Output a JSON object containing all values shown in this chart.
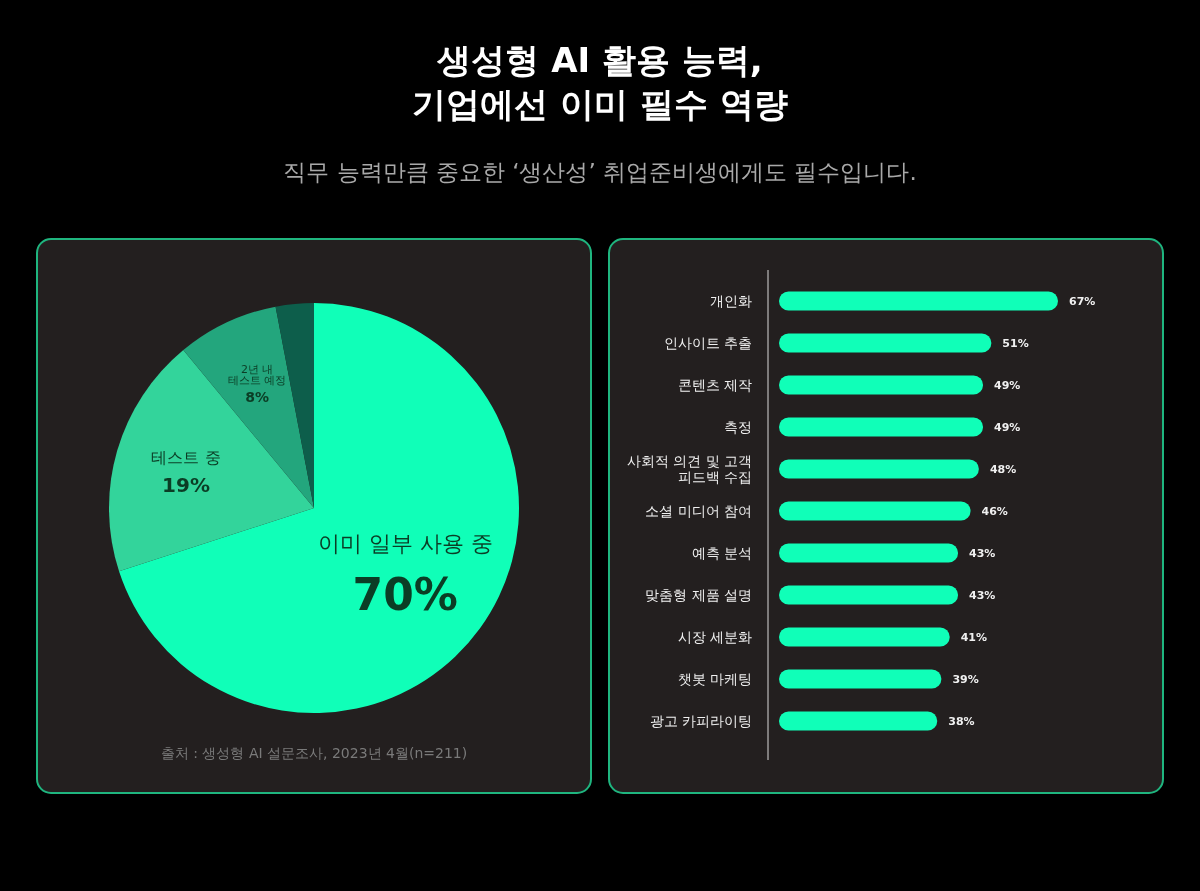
{
  "chart_data": [
    {
      "type": "pie",
      "title": "생성형 AI 활용 능력,\n기업에선 이미 필수 역량",
      "subtitle": "직무 능력만큼 중요한 ‘생산성’ 취업준비생에게도 필수입니다.",
      "categories": [
        "이미 일부 사용 중",
        "테스트 중",
        "2년 내\n테스트 예정",
        null
      ],
      "values": [
        70,
        19,
        8,
        3
      ],
      "colors": [
        "#10ffb8",
        "#33d49b",
        "#23a67d",
        "#0d5e4b"
      ],
      "value_labels": [
        "70%",
        "19%",
        "8%",
        null
      ],
      "annotations": [
        "출처 : 생성형 AI 설문조사, 2023년 4월(n=211)"
      ]
    },
    {
      "type": "bar",
      "orientation": "horizontal",
      "categories": [
        "개인화",
        "인사이트 추출",
        "콘텐츠 제작",
        "측정",
        "사회적 의견 및 고객\n피드백 수집",
        "소셜 미디어 참여",
        "예측 분석",
        "맞춤형 제품 설명",
        "시장 세분화",
        "챗봇 마케팅",
        "광고 카피라이팅"
      ],
      "values": [
        67,
        51,
        49,
        49,
        48,
        46,
        43,
        43,
        41,
        39,
        38
      ],
      "value_labels": [
        "67%",
        "51%",
        "49%",
        "49%",
        "48%",
        "46%",
        "43%",
        "43%",
        "41%",
        "39%",
        "38%"
      ],
      "color": "#10ffb8"
    }
  ]
}
